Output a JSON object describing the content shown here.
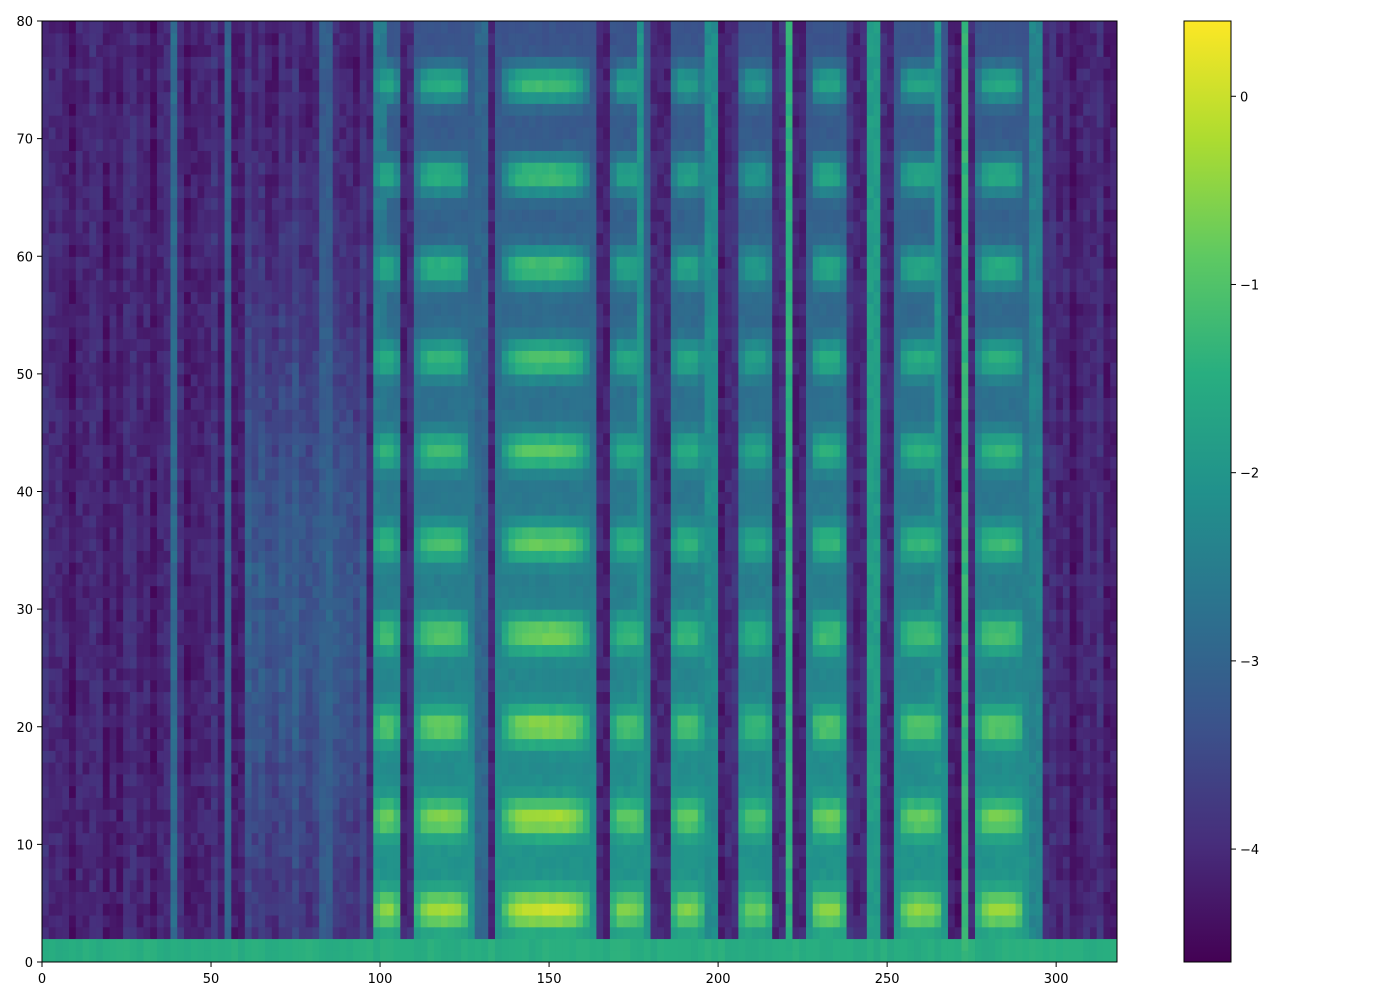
{
  "chart_data": {
    "type": "heatmap",
    "title": "",
    "xlabel": "",
    "ylabel": "",
    "xlim": [
      0,
      318
    ],
    "ylim": [
      0,
      80
    ],
    "x_ticks": [
      0,
      50,
      100,
      150,
      200,
      250,
      300
    ],
    "y_ticks": [
      0,
      10,
      20,
      30,
      40,
      50,
      60,
      70,
      80
    ],
    "grid": false,
    "colormap": "viridis",
    "colorbar": {
      "vmin": -4.6,
      "vmax": 0.4,
      "ticks": [
        0,
        -1,
        -2,
        -3,
        -4
      ],
      "tick_labels": [
        "0",
        "−1",
        "−2",
        "−3",
        "−4"
      ]
    },
    "silence_level": -4.1,
    "low_band_level": -1.6,
    "voiced_segments": [
      {
        "x0": 98,
        "x1": 106,
        "level": -0.3
      },
      {
        "x0": 110,
        "x1": 127,
        "level": -0.1
      },
      {
        "x0": 135,
        "x1": 163,
        "level": 0.2
      },
      {
        "x0": 168,
        "x1": 179,
        "level": -0.4
      },
      {
        "x0": 186,
        "x1": 196,
        "level": -0.4
      },
      {
        "x0": 206,
        "x1": 216,
        "level": -0.6
      },
      {
        "x0": 227,
        "x1": 238,
        "level": -0.3
      },
      {
        "x0": 253,
        "x1": 267,
        "level": -0.3
      },
      {
        "x0": 276,
        "x1": 291,
        "level": -0.2
      }
    ],
    "vertical_streaks": [
      {
        "x": 39,
        "level": -2.7
      },
      {
        "x": 55,
        "level": -2.8
      },
      {
        "x": 84,
        "level": -2.4
      },
      {
        "x": 100,
        "level": -1.8
      },
      {
        "x": 130,
        "level": -2.2
      },
      {
        "x": 177,
        "level": -1.9
      },
      {
        "x": 198,
        "level": -1.4
      },
      {
        "x": 221,
        "level": -1.3
      },
      {
        "x": 246,
        "level": -1.1
      },
      {
        "x": 265,
        "level": -1.9
      },
      {
        "x": 273,
        "level": -1.2
      },
      {
        "x": 294,
        "level": -1.6
      }
    ]
  }
}
